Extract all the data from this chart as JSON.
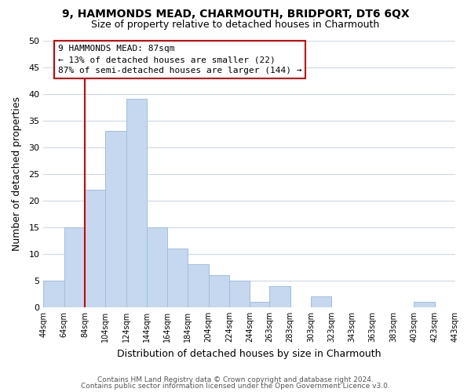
{
  "title1": "9, HAMMONDS MEAD, CHARMOUTH, BRIDPORT, DT6 6QX",
  "title2": "Size of property relative to detached houses in Charmouth",
  "xlabel": "Distribution of detached houses by size in Charmouth",
  "ylabel": "Number of detached properties",
  "bar_heights": [
    5,
    15,
    22,
    33,
    39,
    15,
    11,
    8,
    6,
    5,
    1,
    4,
    0,
    2,
    0,
    0,
    0,
    0,
    1,
    0
  ],
  "bin_edges": [
    44,
    64,
    84,
    104,
    124,
    144,
    164,
    184,
    204,
    224,
    244,
    263,
    283,
    303,
    323,
    343,
    363,
    383,
    403,
    423,
    443
  ],
  "bar_color": "#c5d8f0",
  "bar_edgecolor": "#a0bedd",
  "vline_x": 84,
  "vline_color": "#cc0000",
  "ylim": [
    0,
    50
  ],
  "yticks": [
    0,
    5,
    10,
    15,
    20,
    25,
    30,
    35,
    40,
    45,
    50
  ],
  "annotation_title": "9 HAMMONDS MEAD: 87sqm",
  "annotation_line1": "← 13% of detached houses are smaller (22)",
  "annotation_line2": "87% of semi-detached houses are larger (144) →",
  "footnote1": "Contains HM Land Registry data © Crown copyright and database right 2024.",
  "footnote2": "Contains public sector information licensed under the Open Government Licence v3.0.",
  "tick_labels": [
    "44sqm",
    "64sqm",
    "84sqm",
    "104sqm",
    "124sqm",
    "144sqm",
    "164sqm",
    "184sqm",
    "204sqm",
    "224sqm",
    "244sqm",
    "263sqm",
    "283sqm",
    "303sqm",
    "323sqm",
    "343sqm",
    "363sqm",
    "383sqm",
    "403sqm",
    "423sqm",
    "443sqm"
  ],
  "background_color": "#ffffff",
  "grid_color": "#ccd9e8"
}
